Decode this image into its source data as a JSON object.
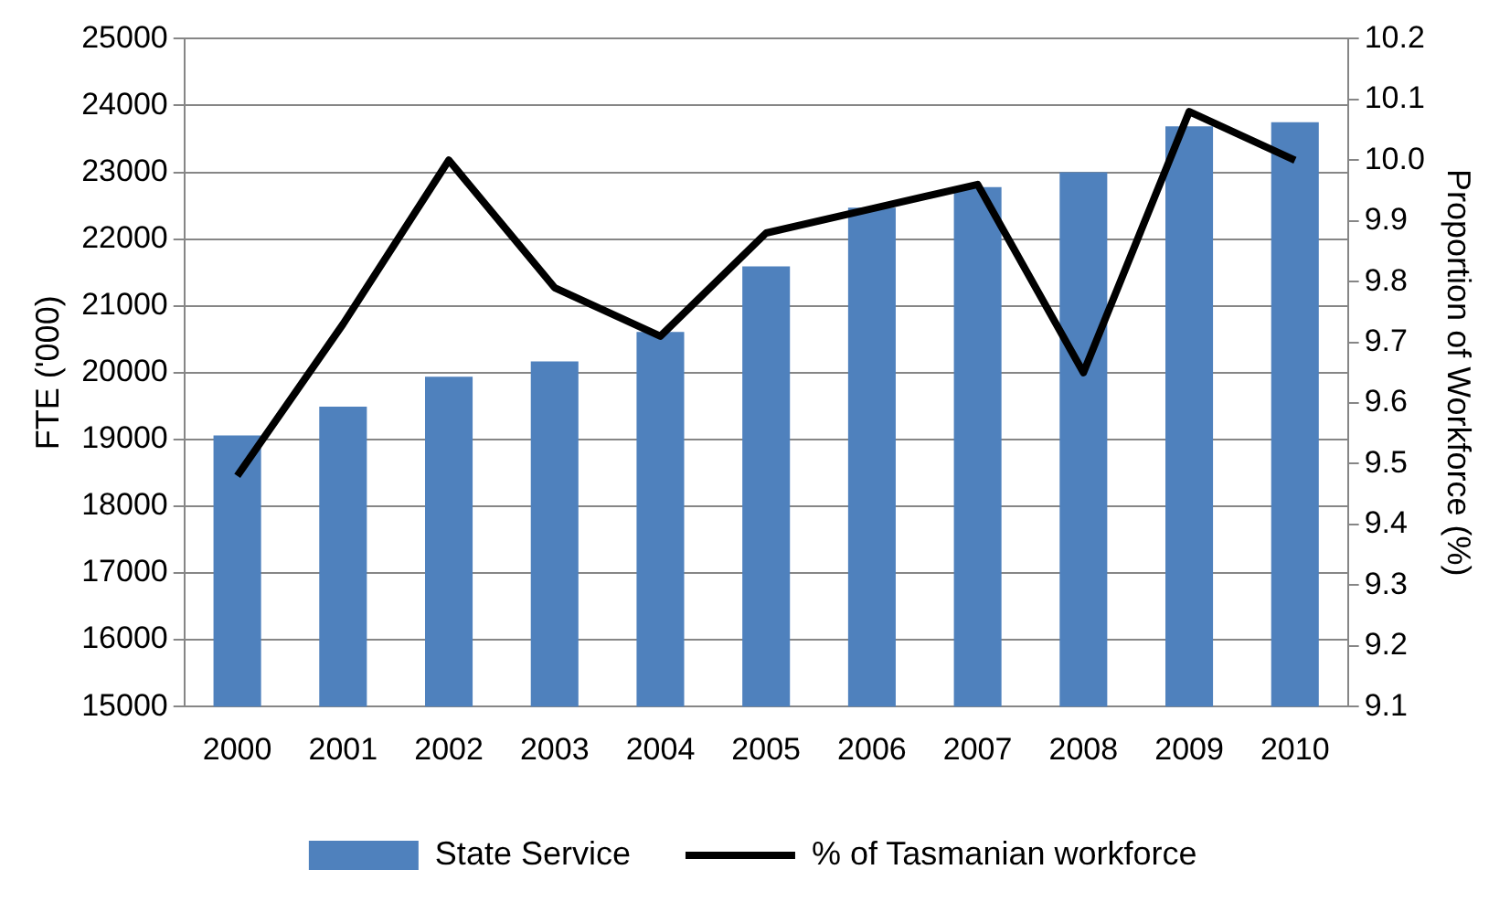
{
  "chart_data": {
    "type": "bar",
    "categories": [
      "2000",
      "2001",
      "2002",
      "2003",
      "2004",
      "2005",
      "2006",
      "2007",
      "2008",
      "2009",
      "2010"
    ],
    "ylabel": "FTE ('000)",
    "y2label": "Proportion of Workforce (%)",
    "series": [
      {
        "name": "State Service",
        "color": "#4f81bd",
        "values": [
          19060,
          19490,
          19940,
          20170,
          20610,
          21590,
          22470,
          22780,
          23000,
          23690,
          23750
        ]
      },
      {
        "name": "% of Tasmanian workforce",
        "type": "line",
        "axis": "y2",
        "color": "#000000",
        "values": [
          9.48,
          9.73,
          10.0,
          9.79,
          9.71,
          9.88,
          9.92,
          9.96,
          9.65,
          10.08,
          10.0
        ]
      }
    ],
    "ylim": [
      15000,
      25000
    ],
    "yticks": [
      15000,
      16000,
      17000,
      18000,
      19000,
      20000,
      21000,
      22000,
      23000,
      24000,
      25000
    ],
    "y2lim": [
      9.1,
      10.2
    ],
    "y2ticks": [
      {
        "value": 9.1,
        "label": "9.1"
      },
      {
        "value": 9.2,
        "label": "9.2"
      },
      {
        "value": 9.3,
        "label": "9.3"
      },
      {
        "value": 9.4,
        "label": "9.4"
      },
      {
        "value": 9.5,
        "label": "9.5"
      },
      {
        "value": 9.6,
        "label": "9.6"
      },
      {
        "value": 9.7,
        "label": "9.7"
      },
      {
        "value": 9.8,
        "label": "9.8"
      },
      {
        "value": 9.9,
        "label": "9.9"
      },
      {
        "value": 10.0,
        "label": "10.0"
      },
      {
        "value": 10.1,
        "label": "10.1"
      },
      {
        "value": 10.2,
        "label": "10.2"
      }
    ],
    "grid": "y",
    "legend": "bottom",
    "marker": "none",
    "line_style": "solid"
  }
}
